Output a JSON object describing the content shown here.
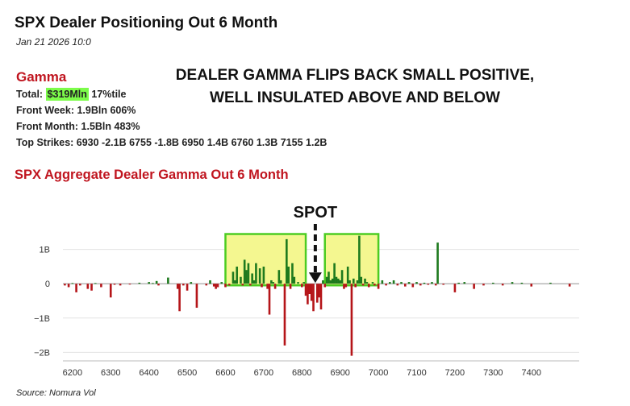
{
  "header": {
    "title": "SPX Dealer Positioning Out 6 Month",
    "timestamp": "Jan 21 2026 10:0"
  },
  "gamma": {
    "heading": "Gamma",
    "total_label": "Total:",
    "total_value": "$319Mln",
    "total_pct": "17%tile",
    "front_week": "Front Week: 1.9Bln 606%",
    "front_month": "Front Month: 1.5Bln 483%",
    "top_strikes": "Top Strikes: 6930 -2.1B 6755 -1.8B 6950 1.4B 6760 1.3B 7155 1.2B"
  },
  "headline": {
    "line1": "DEALER GAMMA FLIPS BACK SMALL POSITIVE,",
    "line2": "WELL INSULATED ABOVE AND BELOW"
  },
  "chart_title": "SPX Aggregate Dealer Gamma Out 6 Month",
  "source": "Source: Nomura Vol",
  "colors": {
    "positive": "#1e7a1e",
    "negative": "#b51519",
    "highlight_fill": "#f4f790",
    "highlight_stroke": "#4ccc22",
    "title_red": "#c0151f"
  },
  "chart_data": {
    "type": "bar",
    "xlabel": "",
    "ylabel": "",
    "xlim": [
      6175,
      7525
    ],
    "ylim": [
      -2.25,
      1.65
    ],
    "x_ticks": [
      6200,
      6300,
      6400,
      6500,
      6600,
      6700,
      6800,
      6900,
      7000,
      7100,
      7200,
      7300,
      7400
    ],
    "y_ticks": [
      {
        "value": 1,
        "label": "1B"
      },
      {
        "value": 0,
        "label": "0"
      },
      {
        "value": -1,
        "label": "−1B"
      },
      {
        "value": -2,
        "label": "−2B"
      }
    ],
    "spot": {
      "label": "SPOT",
      "x": 6835
    },
    "highlight_ranges": [
      [
        6600,
        6810
      ],
      [
        6860,
        7000
      ]
    ],
    "bars": [
      {
        "x": 6180,
        "y": -0.05
      },
      {
        "x": 6190,
        "y": -0.1
      },
      {
        "x": 6200,
        "y": 0.02
      },
      {
        "x": 6210,
        "y": -0.25
      },
      {
        "x": 6220,
        "y": -0.05
      },
      {
        "x": 6240,
        "y": -0.15
      },
      {
        "x": 6250,
        "y": -0.2
      },
      {
        "x": 6260,
        "y": 0.02
      },
      {
        "x": 6275,
        "y": -0.1
      },
      {
        "x": 6300,
        "y": -0.4
      },
      {
        "x": 6310,
        "y": -0.03
      },
      {
        "x": 6325,
        "y": -0.05
      },
      {
        "x": 6350,
        "y": -0.02
      },
      {
        "x": 6375,
        "y": 0.03
      },
      {
        "x": 6400,
        "y": 0.05
      },
      {
        "x": 6410,
        "y": 0.02
      },
      {
        "x": 6420,
        "y": 0.08
      },
      {
        "x": 6425,
        "y": -0.05
      },
      {
        "x": 6450,
        "y": 0.18
      },
      {
        "x": 6475,
        "y": -0.15
      },
      {
        "x": 6480,
        "y": -0.8
      },
      {
        "x": 6490,
        "y": -0.05
      },
      {
        "x": 6500,
        "y": -0.2
      },
      {
        "x": 6510,
        "y": 0.05
      },
      {
        "x": 6525,
        "y": -0.7
      },
      {
        "x": 6550,
        "y": -0.05
      },
      {
        "x": 6560,
        "y": 0.1
      },
      {
        "x": 6570,
        "y": -0.08
      },
      {
        "x": 6575,
        "y": -0.15
      },
      {
        "x": 6580,
        "y": -0.1
      },
      {
        "x": 6590,
        "y": 0.05
      },
      {
        "x": 6600,
        "y": -0.1
      },
      {
        "x": 6610,
        "y": -0.05
      },
      {
        "x": 6620,
        "y": 0.35
      },
      {
        "x": 6625,
        "y": 0.1
      },
      {
        "x": 6630,
        "y": 0.5
      },
      {
        "x": 6640,
        "y": 0.2
      },
      {
        "x": 6645,
        "y": -0.05
      },
      {
        "x": 6650,
        "y": 0.7
      },
      {
        "x": 6655,
        "y": 0.4
      },
      {
        "x": 6660,
        "y": 0.6
      },
      {
        "x": 6665,
        "y": -0.05
      },
      {
        "x": 6670,
        "y": 0.3
      },
      {
        "x": 6675,
        "y": 0.1
      },
      {
        "x": 6680,
        "y": 0.6
      },
      {
        "x": 6690,
        "y": 0.45
      },
      {
        "x": 6695,
        "y": -0.1
      },
      {
        "x": 6700,
        "y": 0.5
      },
      {
        "x": 6710,
        "y": -0.15
      },
      {
        "x": 6715,
        "y": -0.9
      },
      {
        "x": 6720,
        "y": 0.1
      },
      {
        "x": 6725,
        "y": 0.05
      },
      {
        "x": 6730,
        "y": -0.15
      },
      {
        "x": 6740,
        "y": 0.4
      },
      {
        "x": 6745,
        "y": 0.1
      },
      {
        "x": 6755,
        "y": -1.8
      },
      {
        "x": 6760,
        "y": 1.3
      },
      {
        "x": 6765,
        "y": 0.5
      },
      {
        "x": 6770,
        "y": -0.15
      },
      {
        "x": 6775,
        "y": 0.6
      },
      {
        "x": 6780,
        "y": 0.2
      },
      {
        "x": 6790,
        "y": 0.05
      },
      {
        "x": 6800,
        "y": -0.1
      },
      {
        "x": 6805,
        "y": 0.05
      },
      {
        "x": 6810,
        "y": -0.35
      },
      {
        "x": 6815,
        "y": -0.6
      },
      {
        "x": 6820,
        "y": -0.3
      },
      {
        "x": 6825,
        "y": -0.5
      },
      {
        "x": 6830,
        "y": -0.8
      },
      {
        "x": 6840,
        "y": -0.55
      },
      {
        "x": 6845,
        "y": -0.4
      },
      {
        "x": 6850,
        "y": -0.75
      },
      {
        "x": 6855,
        "y": 0.1
      },
      {
        "x": 6860,
        "y": -0.1
      },
      {
        "x": 6865,
        "y": 0.2
      },
      {
        "x": 6870,
        "y": 0.35
      },
      {
        "x": 6875,
        "y": 0.1
      },
      {
        "x": 6880,
        "y": 0.15
      },
      {
        "x": 6885,
        "y": 0.6
      },
      {
        "x": 6890,
        "y": 0.2
      },
      {
        "x": 6895,
        "y": 0.15
      },
      {
        "x": 6900,
        "y": 0.1
      },
      {
        "x": 6905,
        "y": 0.4
      },
      {
        "x": 6910,
        "y": -0.15
      },
      {
        "x": 6915,
        "y": -0.1
      },
      {
        "x": 6920,
        "y": 0.5
      },
      {
        "x": 6925,
        "y": 0.1
      },
      {
        "x": 6930,
        "y": -2.1
      },
      {
        "x": 6935,
        "y": 0.15
      },
      {
        "x": 6940,
        "y": -0.1
      },
      {
        "x": 6945,
        "y": 0.1
      },
      {
        "x": 6950,
        "y": 1.4
      },
      {
        "x": 6955,
        "y": 0.2
      },
      {
        "x": 6960,
        "y": -0.05
      },
      {
        "x": 6965,
        "y": 0.15
      },
      {
        "x": 6970,
        "y": 0.05
      },
      {
        "x": 6975,
        "y": -0.1
      },
      {
        "x": 6985,
        "y": 0.05
      },
      {
        "x": 6990,
        "y": -0.05
      },
      {
        "x": 7000,
        "y": -0.15
      },
      {
        "x": 7010,
        "y": 0.1
      },
      {
        "x": 7020,
        "y": -0.05
      },
      {
        "x": 7030,
        "y": 0.05
      },
      {
        "x": 7040,
        "y": 0.1
      },
      {
        "x": 7050,
        "y": -0.05
      },
      {
        "x": 7060,
        "y": 0.05
      },
      {
        "x": 7070,
        "y": -0.08
      },
      {
        "x": 7080,
        "y": 0.05
      },
      {
        "x": 7090,
        "y": -0.1
      },
      {
        "x": 7100,
        "y": 0.05
      },
      {
        "x": 7110,
        "y": -0.05
      },
      {
        "x": 7120,
        "y": 0.03
      },
      {
        "x": 7130,
        "y": -0.03
      },
      {
        "x": 7140,
        "y": 0.05
      },
      {
        "x": 7150,
        "y": -0.05
      },
      {
        "x": 7155,
        "y": 1.2
      },
      {
        "x": 7170,
        "y": -0.03
      },
      {
        "x": 7200,
        "y": -0.25
      },
      {
        "x": 7210,
        "y": 0.03
      },
      {
        "x": 7225,
        "y": 0.05
      },
      {
        "x": 7250,
        "y": -0.15
      },
      {
        "x": 7275,
        "y": -0.05
      },
      {
        "x": 7300,
        "y": 0.03
      },
      {
        "x": 7325,
        "y": -0.05
      },
      {
        "x": 7350,
        "y": 0.05
      },
      {
        "x": 7375,
        "y": 0.03
      },
      {
        "x": 7400,
        "y": -0.08
      },
      {
        "x": 7450,
        "y": 0.03
      },
      {
        "x": 7500,
        "y": -0.08
      }
    ]
  }
}
